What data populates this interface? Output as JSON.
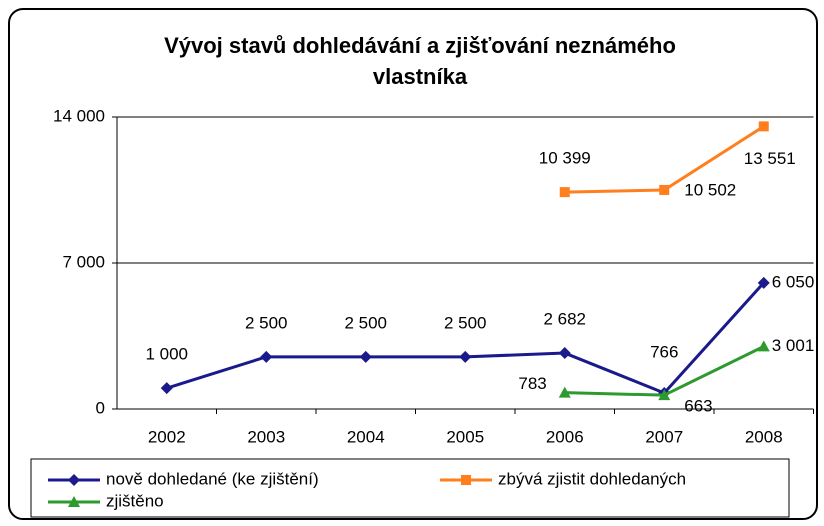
{
  "chart_data": {
    "type": "line",
    "title": "Vývoj stavů dohledávání a zjišťování neznámého vlastníka",
    "categories": [
      "2002",
      "2003",
      "2004",
      "2005",
      "2006",
      "2007",
      "2008"
    ],
    "series": [
      {
        "name": "nově dohledané (ke zjištění)",
        "color": "#1a1a8c",
        "marker": "diamond",
        "values": [
          1000,
          2500,
          2500,
          2500,
          2682,
          766,
          6050
        ],
        "value_labels": [
          "1 000",
          "2 500",
          "2 500",
          "2 500",
          "2 682",
          "766",
          "6 050"
        ]
      },
      {
        "name": "zbývá zjistit dohledaných",
        "color": "#ff7f1e",
        "marker": "square",
        "values": [
          null,
          null,
          null,
          null,
          10399,
          10502,
          13551
        ],
        "value_labels": [
          null,
          null,
          null,
          null,
          "10 399",
          "10 502",
          "13 551"
        ]
      },
      {
        "name": "zjištěno",
        "color": "#2e9a2e",
        "marker": "triangle",
        "values": [
          null,
          null,
          null,
          null,
          783,
          663,
          3001
        ],
        "value_labels": [
          null,
          null,
          null,
          null,
          "783",
          "663",
          "3 001"
        ]
      }
    ],
    "ylim": [
      0,
      14000
    ],
    "yticks": [
      0,
      {
        "value": 7000,
        "label": "7 000"
      },
      {
        "value": 14000,
        "label": "14 000"
      }
    ],
    "grid": true
  }
}
